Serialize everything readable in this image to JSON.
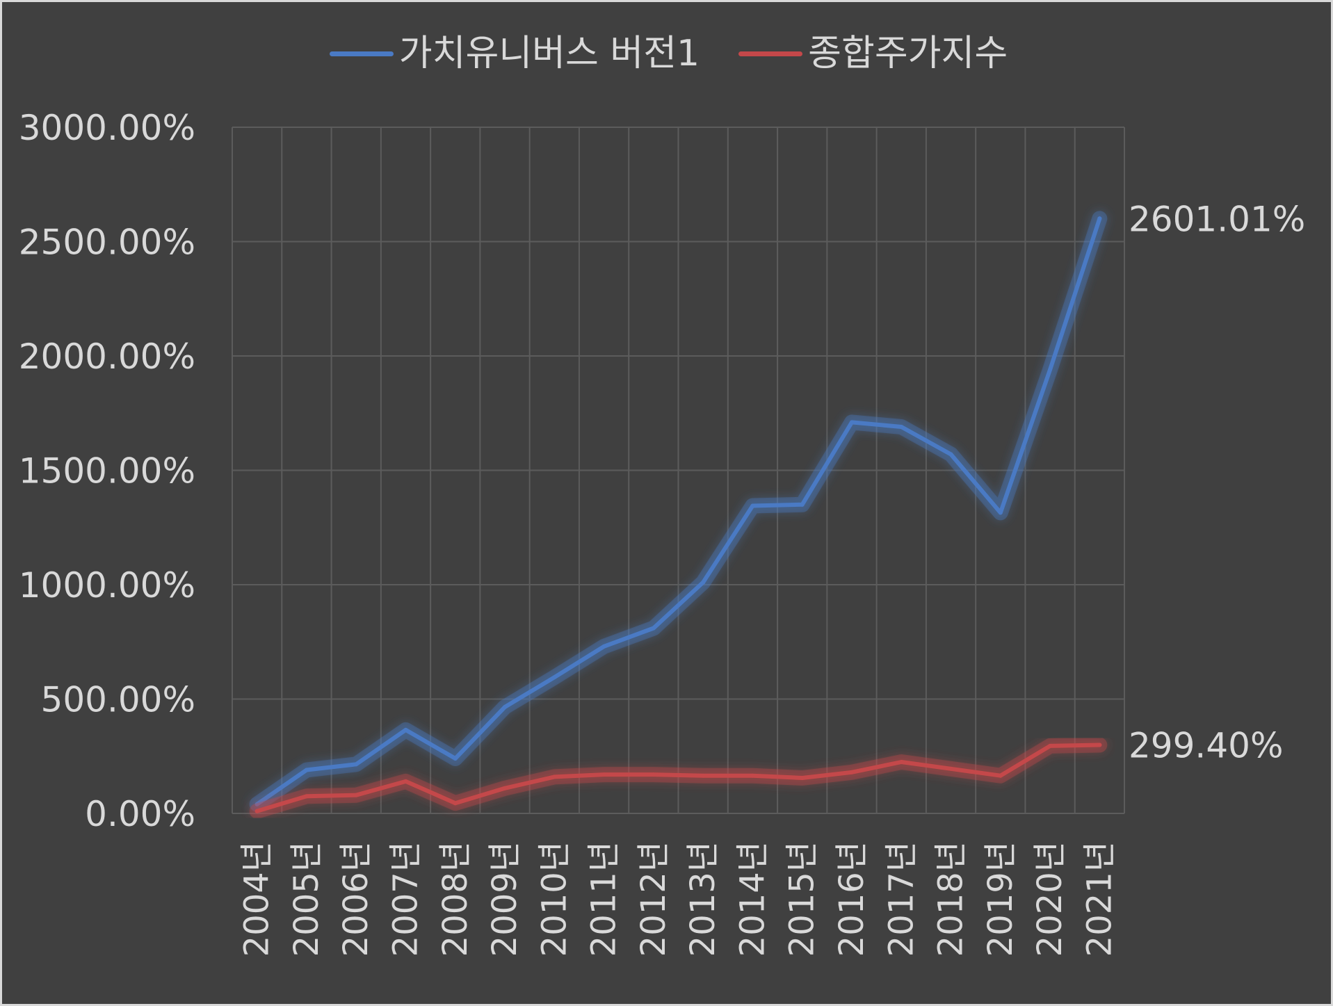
{
  "chart_data": {
    "type": "line",
    "categories": [
      "2004년",
      "2005년",
      "2006년",
      "2007년",
      "2008년",
      "2009년",
      "2010년",
      "2011년",
      "2012년",
      "2013년",
      "2014년",
      "2015년",
      "2016년",
      "2017년",
      "2018년",
      "2019년",
      "2020년",
      "2021년"
    ],
    "series": [
      {
        "name": "가치유니버스 버전1",
        "color": "#4a7ac4",
        "values": [
          40,
          190,
          215,
          365,
          240,
          465,
          595,
          730,
          810,
          1010,
          1345,
          1350,
          1710,
          1690,
          1570,
          1315,
          1940,
          2601.01
        ],
        "end_label": "2601.01%"
      },
      {
        "name": "종합주가지수",
        "color": "#c4484a",
        "values": [
          10,
          75,
          80,
          140,
          45,
          110,
          160,
          170,
          170,
          165,
          165,
          155,
          180,
          225,
          195,
          165,
          295,
          299.4
        ],
        "end_label": "299.40%"
      }
    ],
    "y_ticks": [
      "0.00%",
      "500.00%",
      "1000.00%",
      "1500.00%",
      "2000.00%",
      "2500.00%",
      "3000.00%"
    ],
    "ylim": [
      0,
      3000
    ],
    "grid": true,
    "legend": "top-center",
    "colors": {
      "background": "#404040",
      "grid": "#5c5c5c",
      "text": "#d9d9d9",
      "border": "#d9d9d9"
    }
  }
}
